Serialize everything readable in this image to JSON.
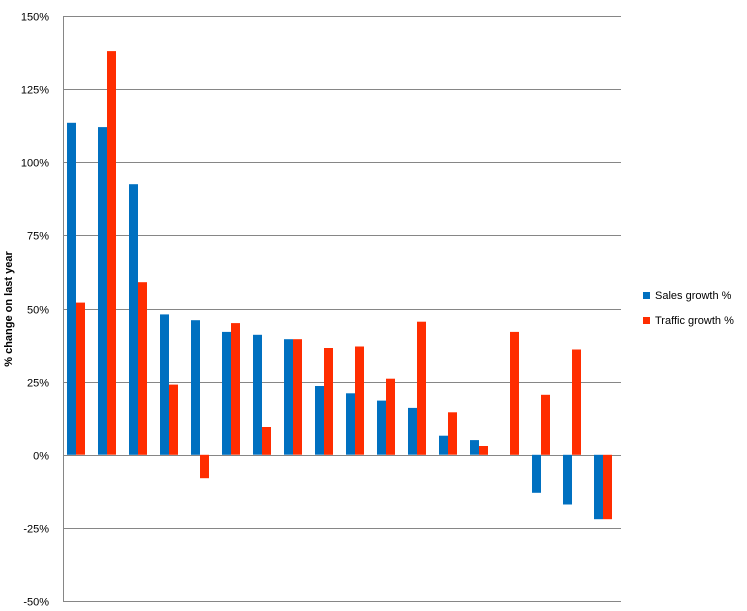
{
  "chart_data": {
    "type": "bar",
    "title": "",
    "xlabel": "",
    "ylabel": "% change on last year",
    "ylim": [
      -50,
      150
    ],
    "ytick_values": [
      -50,
      -25,
      0,
      25,
      50,
      75,
      100,
      125,
      150
    ],
    "ytick_labels": [
      "-50%",
      "-25%",
      "0%",
      "25%",
      "50%",
      "75%",
      "100%",
      "125%",
      "150%"
    ],
    "grid": true,
    "legend_position": "right",
    "categories": [
      "",
      "",
      "",
      "",
      "",
      "",
      "",
      "",
      "",
      "",
      "",
      "",
      "",
      "",
      "",
      "",
      "",
      ""
    ],
    "series": [
      {
        "name": "Sales growth %",
        "color": "#0070c0",
        "values": [
          113.5,
          112,
          92.5,
          48,
          46,
          42,
          41,
          39.5,
          23.5,
          21,
          18.5,
          16,
          6.5,
          5,
          0,
          -13,
          -17,
          -22
        ]
      },
      {
        "name": "Traffic growth %",
        "color": "#ff2d00",
        "values": [
          52,
          138,
          59,
          24,
          -8,
          45,
          9.5,
          39.5,
          36.5,
          37,
          26,
          45.5,
          14.5,
          3,
          42,
          20.5,
          36,
          -22
        ]
      }
    ]
  }
}
